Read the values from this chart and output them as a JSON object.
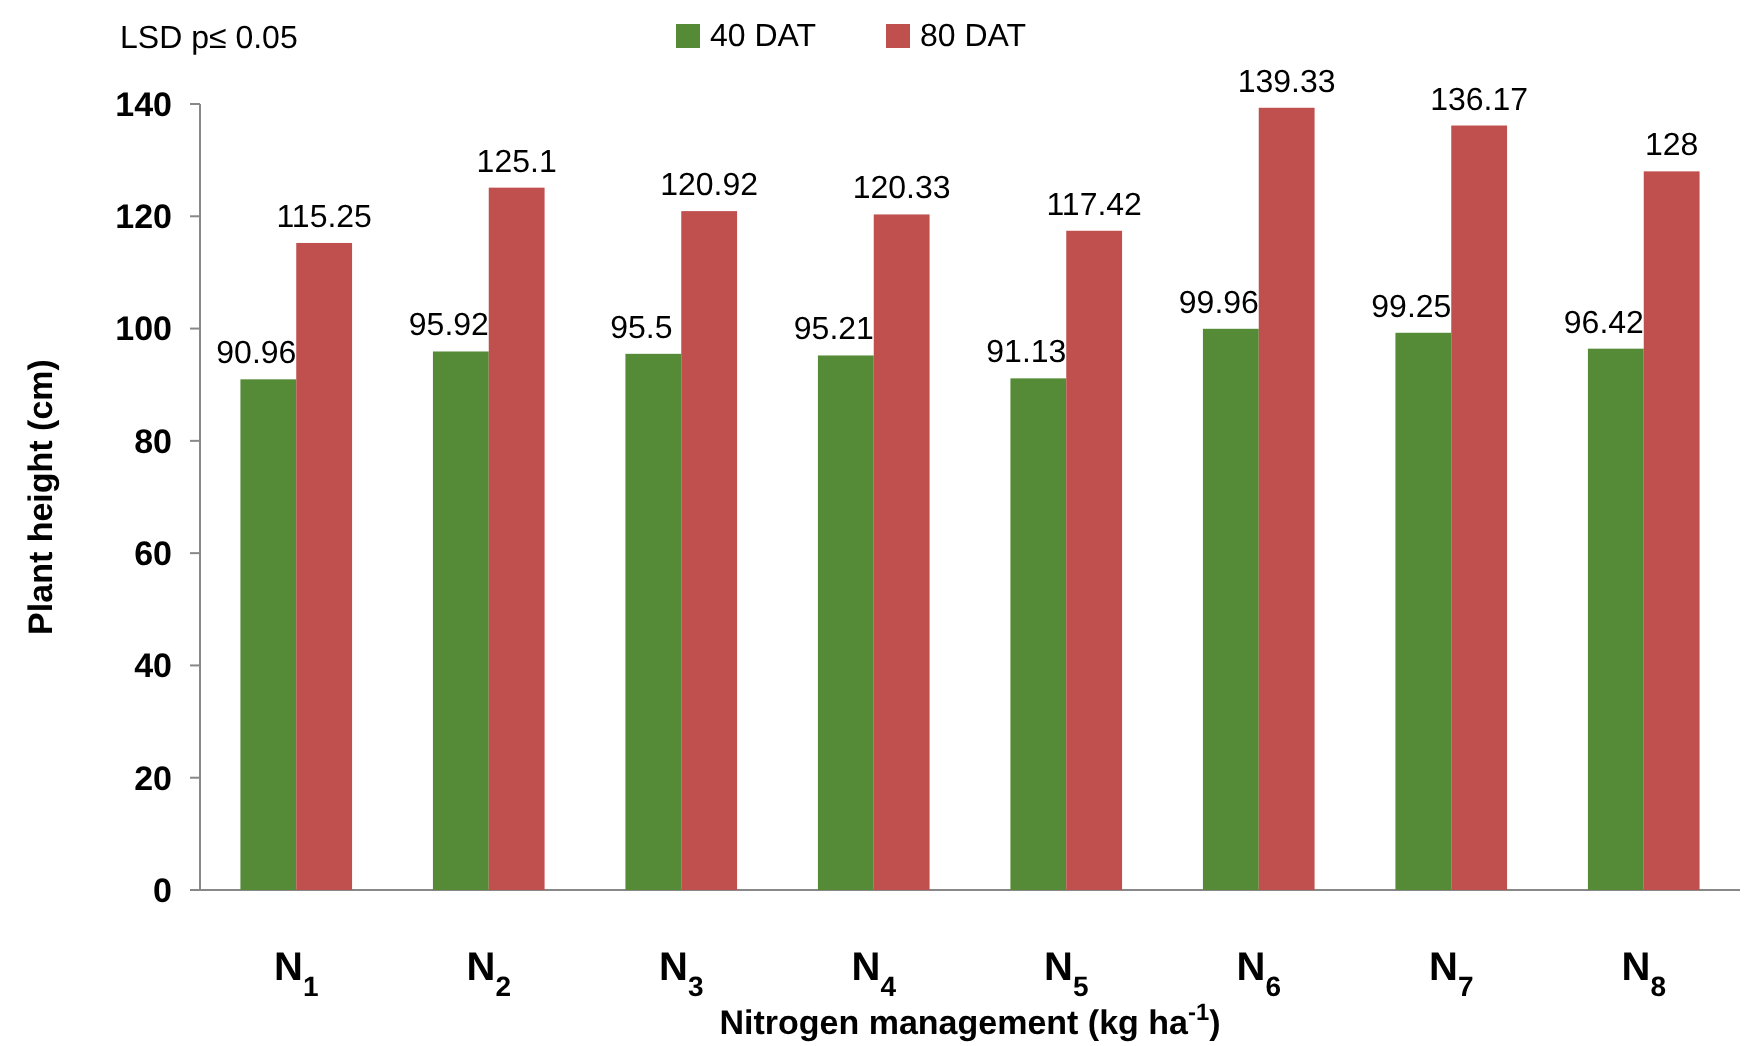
{
  "chart_data": {
    "type": "bar",
    "xlabel": "Nitrogen management (kg ha$^{-1}$)",
    "ylabel": "Plant height (cm)",
    "annotations": [
      "LSD p≤ 0.05"
    ],
    "categories": [
      "N$_{1}$",
      "N$_{2}$",
      "N$_{3}$",
      "N$_{4}$",
      "N$_{5}$",
      "N$_{6}$",
      "N$_{7}$",
      "N$_{8}$"
    ],
    "series": [
      {
        "name": "40 DAT",
        "color": "#558b36",
        "values": [
          90.96,
          95.92,
          95.5,
          95.21,
          91.13,
          99.96,
          99.25,
          96.42
        ]
      },
      {
        "name": "80 DAT",
        "color": "#c0504d",
        "values": [
          115.25,
          125.1,
          120.92,
          120.33,
          117.42,
          139.33,
          136.17,
          128
        ]
      }
    ],
    "ylim": [
      0,
      140
    ],
    "yticks": [
      0,
      20,
      40,
      60,
      80,
      100,
      120,
      140
    ],
    "grid": false,
    "legend": "top",
    "data_labels": true
  }
}
